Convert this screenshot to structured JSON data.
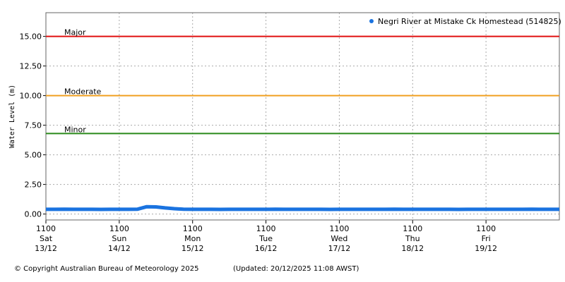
{
  "chart_data": {
    "type": "line",
    "y_label": "Water Level (m)",
    "series": [
      {
        "name": "Negri River at Mistake Ck Homestead (514825)",
        "color": "#1a73e0",
        "x": [
          0,
          3,
          6,
          9,
          12,
          15,
          18,
          21,
          24,
          27,
          30,
          33,
          36,
          39,
          42,
          45,
          48,
          51,
          54,
          57,
          60,
          63,
          66,
          69,
          72,
          75,
          78,
          81,
          84,
          87,
          90,
          93,
          96,
          99,
          102,
          105,
          108,
          111,
          114,
          117,
          120,
          123,
          126,
          129,
          132,
          135,
          138,
          141,
          144,
          147,
          150,
          153,
          156,
          159,
          162,
          165,
          168
        ],
        "values": [
          0.4,
          0.4,
          0.41,
          0.4,
          0.4,
          0.4,
          0.39,
          0.4,
          0.4,
          0.4,
          0.41,
          0.62,
          0.6,
          0.52,
          0.45,
          0.41,
          0.4,
          0.4,
          0.4,
          0.39,
          0.4,
          0.4,
          0.4,
          0.4,
          0.4,
          0.41,
          0.4,
          0.4,
          0.4,
          0.4,
          0.4,
          0.39,
          0.4,
          0.4,
          0.4,
          0.4,
          0.4,
          0.4,
          0.41,
          0.4,
          0.4,
          0.4,
          0.4,
          0.4,
          0.4,
          0.39,
          0.4,
          0.4,
          0.4,
          0.4,
          0.4,
          0.4,
          0.4,
          0.41,
          0.4,
          0.4,
          0.4
        ]
      }
    ],
    "thresholds": [
      {
        "label": "Major",
        "value": 15,
        "color": "#e01010"
      },
      {
        "label": "Moderate",
        "value": 10,
        "color": "#f0a020"
      },
      {
        "label": "Minor",
        "value": 6.8,
        "color": "#2a8a1a"
      }
    ],
    "xlim": [
      0,
      168
    ],
    "xticks": [
      {
        "value": 0,
        "label": [
          "1100",
          "Sat",
          "13/12"
        ]
      },
      {
        "value": 24,
        "label": [
          "1100",
          "Sun",
          "14/12"
        ]
      },
      {
        "value": 48,
        "label": [
          "1100",
          "Mon",
          "15/12"
        ]
      },
      {
        "value": 72,
        "label": [
          "1100",
          "Tue",
          "16/12"
        ]
      },
      {
        "value": 96,
        "label": [
          "1100",
          "Wed",
          "17/12"
        ]
      },
      {
        "value": 120,
        "label": [
          "1100",
          "Thu",
          "18/12"
        ]
      },
      {
        "value": 144,
        "label": [
          "1100",
          "Fri",
          "19/12"
        ]
      }
    ],
    "ylim": [
      -0.5,
      17
    ],
    "yticks": [
      {
        "value": 0,
        "label": "0.00"
      },
      {
        "value": 2.5,
        "label": "2.50"
      },
      {
        "value": 5,
        "label": "5.00"
      },
      {
        "value": 7.5,
        "label": "7.50"
      },
      {
        "value": 10,
        "label": "10.00"
      },
      {
        "value": 12.5,
        "label": "12.50"
      },
      {
        "value": 15,
        "label": "15.00"
      }
    ],
    "grid": true,
    "legend": "top-right",
    "footer_left": "© Copyright Australian Bureau of Meteorology 2025",
    "footer_right": "(Updated: 20/12/2025 11:08 AWST)"
  }
}
